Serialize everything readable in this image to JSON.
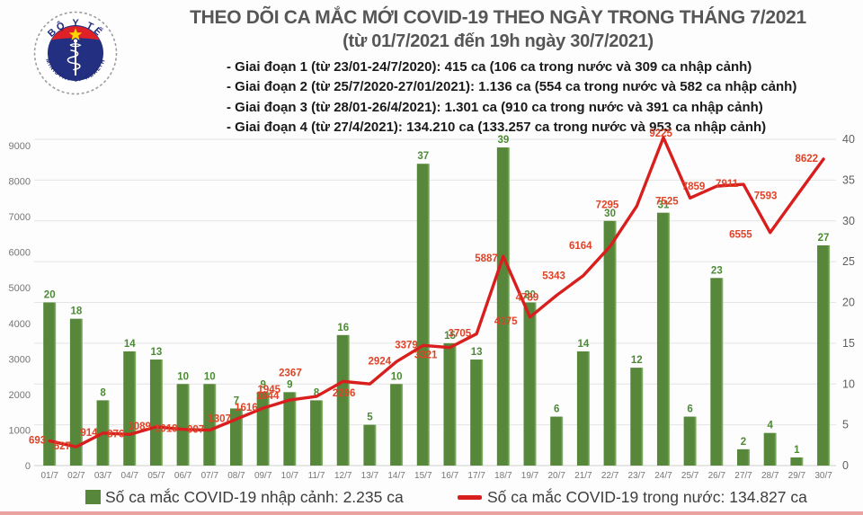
{
  "header": {
    "title": "THEO DÕI CA MẮC MỚI COVID-19 THEO NGÀY TRONG THÁNG 7/2021",
    "subtitle": "(từ 01/7/2021 đến 19h ngày 30/7/2021)",
    "phases": [
      "- Giai đoạn 1 (từ 23/01-24/7/2020): 415 ca (106 ca trong nước và 309 ca nhập cảnh)",
      "- Giai đoạn 2 (từ 25/7/2020-27/01/2021): 1.136 ca (554 ca trong nước và 582 ca nhập cảnh)",
      "- Giai đoạn 3 (từ 28/01-26/4/2021): 1.301 ca (910 ca trong nước và 391 ca nhập cảnh)",
      "- Giai đoạn 4 (từ 27/4/2021): 134.210 ca (133.257 ca trong nước và 953 ca nhập cảnh)"
    ],
    "logo": {
      "top_text": "BỘ Y TẾ",
      "bottom_text": "MINISTRY OF HEALTH"
    }
  },
  "chart_data": {
    "type": "combo_bar_line",
    "title": "THEO DÕI CA MẮC MỚI COVID-19 THEO NGÀY TRONG THÁNG 7/2021",
    "categories": [
      "01/7",
      "02/7",
      "03/7",
      "04/7",
      "05/7",
      "06/7",
      "07/7",
      "08/7",
      "09/7",
      "10/7",
      "11/7",
      "12/7",
      "13/7",
      "14/7",
      "15/7",
      "16/7",
      "17/7",
      "18/7",
      "19/7",
      "20/7",
      "21/7",
      "22/7",
      "23/7",
      "24/7",
      "25/7",
      "26/7",
      "27/7",
      "28/7",
      "29/7",
      "30/7"
    ],
    "series": [
      {
        "name": "Số ca mắc COVID-19 nhập cảnh",
        "type": "bar",
        "axis": "right",
        "values": [
          20,
          18,
          8,
          14,
          13,
          10,
          10,
          7,
          9,
          9,
          8,
          16,
          5,
          10,
          37,
          15,
          13,
          39,
          20,
          6,
          14,
          30,
          12,
          31,
          6,
          23,
          2,
          4,
          1,
          27
        ]
      },
      {
        "name": "Số ca mắc COVID-19 trong nước",
        "type": "line",
        "axis": "left",
        "values": [
          693,
          527,
          914,
          876,
          1089,
          1019,
          997,
          1307,
          1616,
          1844,
          1945,
          2367,
          2296,
          2924,
          3379,
          3321,
          3705,
          5887,
          4175,
          4789,
          5343,
          6164,
          7295,
          9225,
          7525,
          7859,
          7911,
          6555,
          7593,
          8622
        ]
      }
    ],
    "left_axis": {
      "min": 0,
      "max": 9000,
      "step": 1000,
      "ticks": [
        0,
        1000,
        2000,
        3000,
        4000,
        5000,
        6000,
        7000,
        8000,
        9000
      ]
    },
    "right_axis": {
      "min": 0,
      "max": 40,
      "step": 5,
      "ticks": [
        0,
        5,
        10,
        15,
        20,
        25,
        30,
        35,
        40
      ]
    },
    "grid": true,
    "legend_position": "bottom"
  },
  "legend": {
    "items": [
      {
        "swatch": "bar",
        "label": "Số ca mắc COVID-19 nhập cảnh: 2.235 ca"
      },
      {
        "swatch": "line",
        "label": "Số ca mắc COVID-19 trong nước: 134.827 ca"
      }
    ]
  },
  "colors": {
    "bar": "#56873a",
    "bar_edge": "#8cba6c",
    "bar_label": "#4c8a35",
    "line": "#d91e1e",
    "line_label": "#df4327",
    "grid": "#e4e4e4",
    "axis_text": "#767676",
    "title_text": "#565656",
    "logo_navy": "#232f80",
    "logo_red": "#dd2127",
    "logo_star": "#ffd500",
    "bottom_strip": "#e9a1a1"
  }
}
